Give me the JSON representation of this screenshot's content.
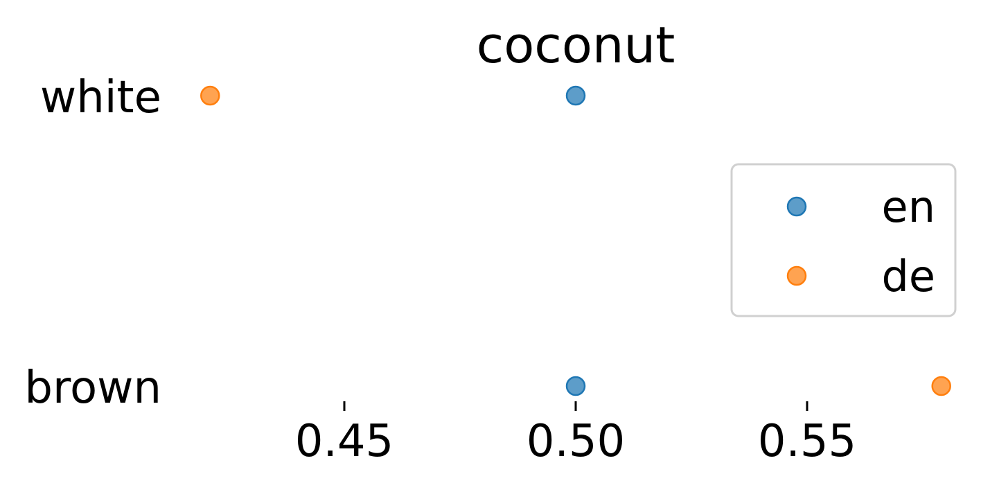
{
  "chart_data": {
    "type": "scatter",
    "title": "coconut",
    "xlabel": "",
    "ylabel": "",
    "categories": [
      "white",
      "brown"
    ],
    "xlim": [
      0.42,
      0.58
    ],
    "xticks": [
      "0.45",
      "0.50",
      "0.55"
    ],
    "xtick_values": [
      0.45,
      0.5,
      0.55
    ],
    "grid": false,
    "legend_position": "right",
    "series": [
      {
        "name": "en",
        "color": "#1f77b4",
        "points": [
          {
            "category": "white",
            "x": 0.5
          },
          {
            "category": "brown",
            "x": 0.5
          }
        ]
      },
      {
        "name": "de",
        "color": "#ff7f0e",
        "points": [
          {
            "category": "white",
            "x": 0.421
          },
          {
            "category": "brown",
            "x": 0.579
          }
        ]
      }
    ]
  }
}
